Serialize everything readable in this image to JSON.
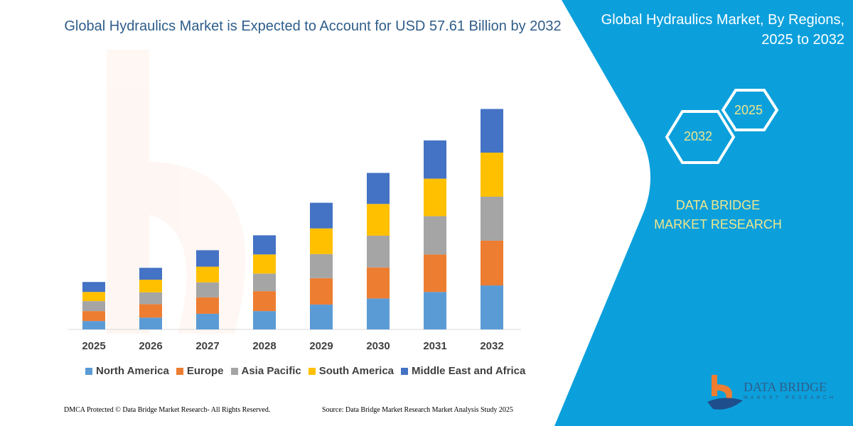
{
  "title": "Global Hydraulics Market is Expected to Account for USD 57.61 Billion by 2032",
  "side_panel": {
    "title": "Global Hydraulics Market, By Regions, 2025 to 2032",
    "hex_start": "2025",
    "hex_end": "2032",
    "brand": "DATA BRIDGE MARKET RESEARCH",
    "logo_text": "DATA BRIDGE",
    "logo_subtext": "MARKET RESEARCH",
    "color": "#0BA0DC"
  },
  "footer": {
    "left": "DMCA Protected © Data Bridge Market Research-  All Rights Reserved.",
    "right": "Source: Data Bridge Market Research  Market Analysis Study 2025"
  },
  "chart_data": {
    "type": "bar",
    "stacked": true,
    "title": "Global Hydraulics Market is Expected to Account for USD 57.61 Billion by 2032",
    "xlabel": "",
    "ylabel": "",
    "grid": false,
    "legend_position": "bottom",
    "categories": [
      "2025",
      "2026",
      "2027",
      "2028",
      "2029",
      "2030",
      "2031",
      "2032"
    ],
    "series": [
      {
        "name": "North America",
        "color": "#5B9BD5",
        "values": [
          2.2,
          3.1,
          4.1,
          4.8,
          6.5,
          8.1,
          9.8,
          11.5
        ]
      },
      {
        "name": "Europe",
        "color": "#ED7D31",
        "values": [
          2.6,
          3.5,
          4.3,
          5.2,
          6.9,
          8.1,
          9.8,
          11.7
        ]
      },
      {
        "name": "Asia Pacific",
        "color": "#A5A5A5",
        "values": [
          2.6,
          3.1,
          3.9,
          4.6,
          6.3,
          8.3,
          10.0,
          11.5
        ]
      },
      {
        "name": "South America",
        "color": "#FFC000",
        "values": [
          2.4,
          3.3,
          4.1,
          5.0,
          6.7,
          8.3,
          9.8,
          11.5
        ]
      },
      {
        "name": "Middle East and Africa",
        "color": "#4472C4",
        "values": [
          2.6,
          3.1,
          4.3,
          5.0,
          6.7,
          8.1,
          10.0,
          11.41
        ]
      }
    ]
  }
}
